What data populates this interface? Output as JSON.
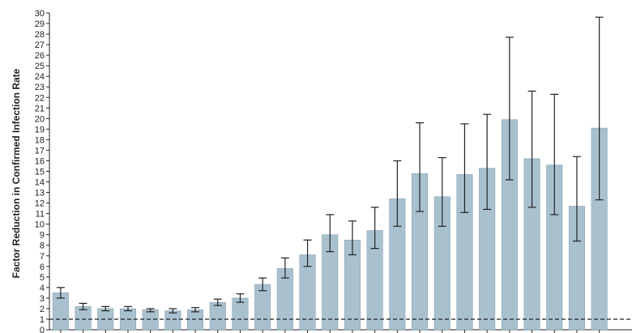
{
  "chart_data": {
    "type": "bar",
    "title": "",
    "xlabel": "",
    "ylabel": "Factor Reduction in Confirmed Infection Rate",
    "ylim": [
      0,
      30
    ],
    "y_ticks": [
      0,
      1,
      2,
      3,
      4,
      5,
      6,
      7,
      8,
      9,
      10,
      11,
      12,
      13,
      14,
      15,
      16,
      17,
      18,
      19,
      20,
      21,
      22,
      23,
      24,
      25,
      26,
      27,
      28,
      29,
      30
    ],
    "grid": false,
    "reference_line": 1,
    "bar_color": "#a9c1cf",
    "bar_border_color": "#7f9aab",
    "series": [
      {
        "values": [
          3.5,
          2.2,
          2.0,
          2.0,
          1.9,
          1.8,
          1.9,
          2.6,
          3.0,
          4.3,
          5.8,
          7.1,
          9.0,
          8.5,
          9.4,
          12.4,
          14.8,
          12.6,
          14.7,
          15.3,
          19.9,
          16.2,
          15.6,
          11.7,
          19.1
        ],
        "lower": [
          3.0,
          1.9,
          1.8,
          1.8,
          1.7,
          1.6,
          1.7,
          2.3,
          2.6,
          3.7,
          4.9,
          6.0,
          7.4,
          7.1,
          7.7,
          9.8,
          11.2,
          9.8,
          11.1,
          11.4,
          14.2,
          11.6,
          10.9,
          8.4,
          12.3
        ],
        "upper": [
          4.0,
          2.5,
          2.2,
          2.2,
          2.0,
          2.0,
          2.1,
          2.9,
          3.4,
          4.9,
          6.8,
          8.5,
          10.9,
          10.3,
          11.6,
          16.0,
          19.6,
          16.3,
          19.5,
          20.4,
          27.7,
          22.6,
          22.3,
          16.4,
          29.6
        ]
      }
    ]
  }
}
